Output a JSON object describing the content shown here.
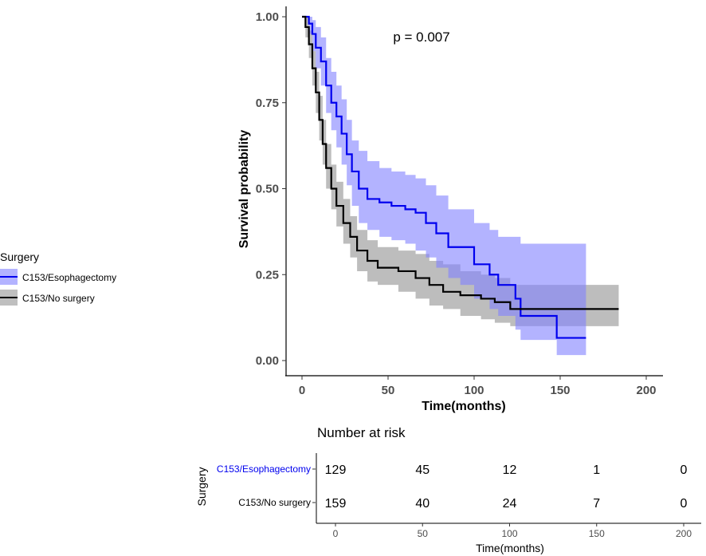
{
  "chart_data": {
    "type": "line",
    "subtype": "kaplan-meier",
    "xlabel": "Time(months)",
    "ylabel": "Survival probability",
    "xlim": [
      0,
      200
    ],
    "ylim": [
      0,
      1
    ],
    "x_ticks": [
      "0",
      "50",
      "100",
      "150",
      "200"
    ],
    "y_ticks": [
      "0.00",
      "0.25",
      "0.50",
      "0.75",
      "1.00"
    ],
    "x_tick_values": [
      0,
      50,
      100,
      150,
      200
    ],
    "y_tick_values": [
      0,
      0.25,
      0.5,
      0.75,
      1
    ],
    "annotation": "p = 0.007",
    "grid": false,
    "legend": {
      "title": "Surgery",
      "placement": "left",
      "entries": [
        "C153/Esophagectomy",
        "C153/No surgery"
      ]
    },
    "series": [
      {
        "name": "C153/Esophagectomy",
        "color": "#0000ee",
        "ci_color": "#8080ff",
        "end_time": 165,
        "points": [
          [
            0,
            1,
            1,
            1
          ],
          [
            4,
            0.98,
            0.95,
            1
          ],
          [
            6,
            0.95,
            0.9,
            0.99
          ],
          [
            8,
            0.91,
            0.85,
            0.97
          ],
          [
            11,
            0.87,
            0.8,
            0.94
          ],
          [
            14,
            0.8,
            0.72,
            0.88
          ],
          [
            17,
            0.75,
            0.67,
            0.84
          ],
          [
            20,
            0.71,
            0.62,
            0.8
          ],
          [
            23,
            0.66,
            0.57,
            0.76
          ],
          [
            26,
            0.6,
            0.51,
            0.7
          ],
          [
            29,
            0.55,
            0.45,
            0.64
          ],
          [
            33,
            0.5,
            0.4,
            0.61
          ],
          [
            38,
            0.47,
            0.38,
            0.58
          ],
          [
            45,
            0.46,
            0.36,
            0.56
          ],
          [
            52,
            0.45,
            0.35,
            0.55
          ],
          [
            60,
            0.44,
            0.34,
            0.54
          ],
          [
            66,
            0.43,
            0.32,
            0.53
          ],
          [
            72,
            0.4,
            0.3,
            0.51
          ],
          [
            78,
            0.37,
            0.27,
            0.48
          ],
          [
            85,
            0.33,
            0.24,
            0.44
          ],
          [
            92,
            0.33,
            0.22,
            0.44
          ],
          [
            100,
            0.28,
            0.18,
            0.4
          ],
          [
            109,
            0.25,
            0.15,
            0.38
          ],
          [
            114,
            0.22,
            0.13,
            0.36
          ],
          [
            124,
            0.18,
            0.09,
            0.36
          ],
          [
            127,
            0.13,
            0.06,
            0.34
          ],
          [
            148,
            0.066,
            0.016,
            0.34
          ]
        ]
      },
      {
        "name": "C153/No surgery",
        "color": "#000000",
        "ci_color": "#999999",
        "end_time": 184,
        "points": [
          [
            0,
            1,
            1,
            1
          ],
          [
            2,
            0.97,
            0.94,
            1
          ],
          [
            4,
            0.92,
            0.88,
            0.96
          ],
          [
            6,
            0.85,
            0.8,
            0.9
          ],
          [
            8,
            0.78,
            0.72,
            0.84
          ],
          [
            10,
            0.7,
            0.64,
            0.77
          ],
          [
            12,
            0.63,
            0.57,
            0.7
          ],
          [
            14,
            0.56,
            0.5,
            0.63
          ],
          [
            17,
            0.5,
            0.44,
            0.57
          ],
          [
            20,
            0.45,
            0.39,
            0.52
          ],
          [
            24,
            0.4,
            0.34,
            0.47
          ],
          [
            28,
            0.36,
            0.3,
            0.42
          ],
          [
            32,
            0.32,
            0.26,
            0.38
          ],
          [
            38,
            0.29,
            0.23,
            0.35
          ],
          [
            44,
            0.27,
            0.22,
            0.33
          ],
          [
            56,
            0.26,
            0.2,
            0.32
          ],
          [
            66,
            0.24,
            0.18,
            0.31
          ],
          [
            74,
            0.22,
            0.16,
            0.29
          ],
          [
            82,
            0.2,
            0.15,
            0.28
          ],
          [
            92,
            0.19,
            0.13,
            0.26
          ],
          [
            104,
            0.18,
            0.12,
            0.25
          ],
          [
            112,
            0.17,
            0.11,
            0.24
          ],
          [
            121,
            0.15,
            0.1,
            0.22
          ]
        ]
      }
    ],
    "risk_table": {
      "title": "Number at risk",
      "ylabel": "Surgery",
      "xlabel": "Time(months)",
      "x_ticks": [
        "0",
        "50",
        "100",
        "150",
        "200"
      ],
      "rows": [
        {
          "label": "C153/Esophagectomy",
          "color": "#0000ee",
          "values": [
            "129",
            "45",
            "12",
            "1",
            "0"
          ]
        },
        {
          "label": "C153/No surgery",
          "color": "#000000",
          "values": [
            "159",
            "40",
            "24",
            "7",
            "0"
          ]
        }
      ]
    }
  }
}
